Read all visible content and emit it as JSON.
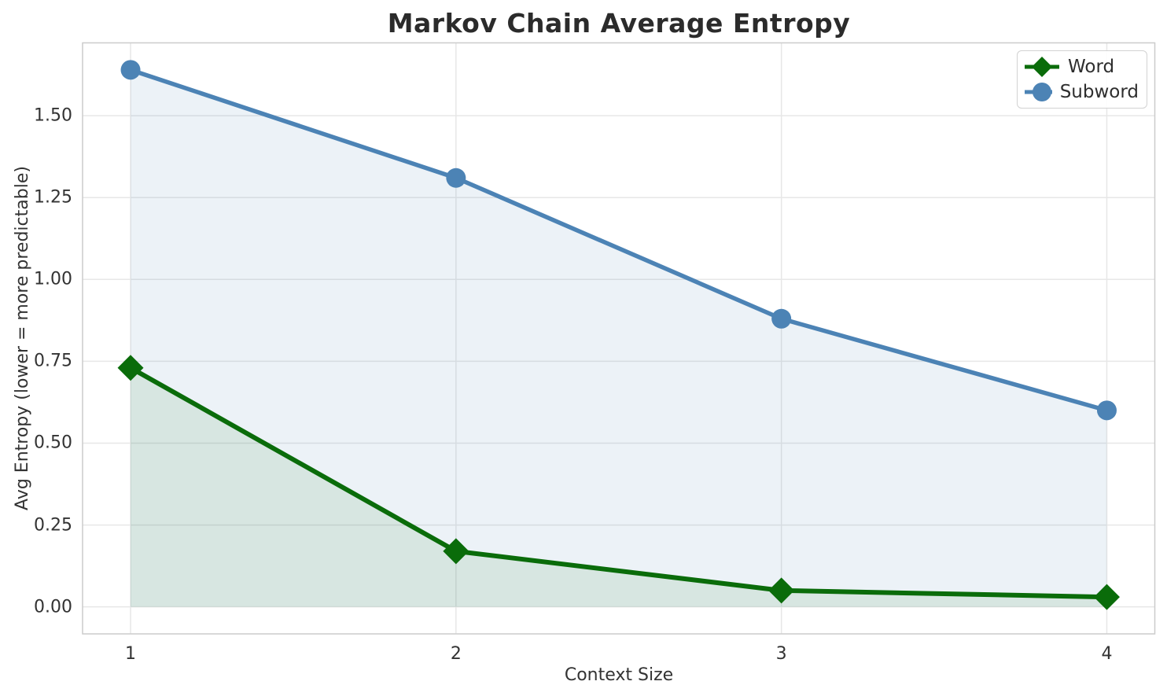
{
  "chart_data": {
    "type": "line",
    "title": "Markov Chain Average Entropy",
    "xlabel": "Context Size",
    "ylabel": "Avg Entropy (lower = more predictable)",
    "x": [
      1,
      2,
      3,
      4
    ],
    "series": [
      {
        "name": "Word",
        "values": [
          0.73,
          0.17,
          0.05,
          0.03
        ],
        "color": "#0a6c0a",
        "marker": "diamond",
        "area_fill": "rgba(0,100,0,0.085)"
      },
      {
        "name": "Subword",
        "values": [
          1.64,
          1.31,
          0.88,
          0.6
        ],
        "color": "#4c83b5",
        "marker": "circle",
        "area_fill": "rgba(70,130,180,0.10)"
      }
    ],
    "xlim": [
      0.8525,
      4.1475
    ],
    "ylim": [
      -0.0825,
      1.7225
    ],
    "xticks": {
      "values": [
        1,
        2,
        3,
        4
      ],
      "labels": [
        "1",
        "2",
        "3",
        "4"
      ]
    },
    "yticks": {
      "values": [
        0.0,
        0.25,
        0.5,
        0.75,
        1.0,
        1.25,
        1.5
      ],
      "labels": [
        "0.00",
        "0.25",
        "0.50",
        "0.75",
        "1.00",
        "1.25",
        "1.50"
      ]
    },
    "grid": true,
    "legend_position": "upper right",
    "colors": {
      "grid": "#e7e7e7",
      "spine": "#cccccc",
      "text": "#333333",
      "title": "#2b2b2b",
      "background": "#ffffff"
    }
  }
}
